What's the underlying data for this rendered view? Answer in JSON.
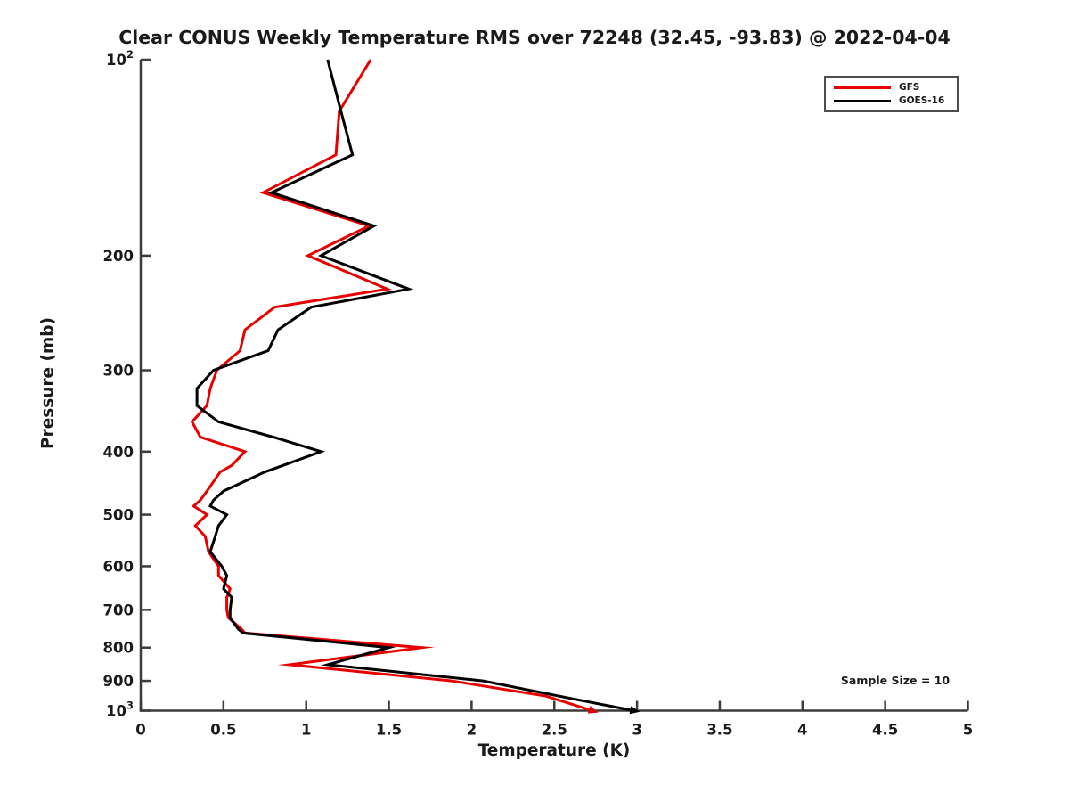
{
  "title": "Clear CONUS Weekly Temperature RMS over 72248 (32.45, -93.83) @ 2022-04-04",
  "legend": {
    "items": [
      {
        "label": "GFS",
        "color": "#e60000"
      },
      {
        "label": "GOES-16",
        "color": "#000000"
      }
    ]
  },
  "annotation": {
    "sample_size_text": "Sample Size = 10"
  },
  "axes": {
    "xlabel": "Temperature (K)",
    "ylabel": "Pressure (mb)",
    "spine_color": "#3c3c3c"
  },
  "chart_data": {
    "type": "line",
    "title": "Clear CONUS Weekly Temperature RMS over 72248 (32.45, -93.83) @ 2022-04-04",
    "xlabel": "Temperature (K)",
    "ylabel": "Pressure (mb)",
    "xlim": [
      0,
      5
    ],
    "ylim": [
      100,
      1000
    ],
    "y_scale": "log10-inverted",
    "grid": false,
    "legend_position": "upper-right",
    "sample_size": 10,
    "x_ticks": [
      {
        "value": 0,
        "label": "0"
      },
      {
        "value": 0.5,
        "label": "0.5"
      },
      {
        "value": 1,
        "label": "1"
      },
      {
        "value": 1.5,
        "label": "1.5"
      },
      {
        "value": 2,
        "label": "2"
      },
      {
        "value": 2.5,
        "label": "2.5"
      },
      {
        "value": 3,
        "label": "3"
      },
      {
        "value": 3.5,
        "label": "3.5"
      },
      {
        "value": 4,
        "label": "4"
      },
      {
        "value": 4.5,
        "label": "4.5"
      },
      {
        "value": 5,
        "label": "5"
      }
    ],
    "y_ticks": [
      {
        "value": 100,
        "label": "10",
        "exponent": "2"
      },
      {
        "value": 200,
        "label": "200"
      },
      {
        "value": 300,
        "label": "300"
      },
      {
        "value": 400,
        "label": "400"
      },
      {
        "value": 500,
        "label": "500"
      },
      {
        "value": 600,
        "label": "600"
      },
      {
        "value": 700,
        "label": "700"
      },
      {
        "value": 800,
        "label": "800"
      },
      {
        "value": 900,
        "label": "900"
      },
      {
        "value": 1000,
        "label": "10",
        "exponent": "3"
      }
    ],
    "pressure_levels": [
      100,
      120,
      140,
      160,
      180,
      200,
      225,
      240,
      260,
      280,
      300,
      320,
      340,
      360,
      380,
      400,
      420,
      430,
      460,
      475,
      485,
      500,
      520,
      540,
      570,
      600,
      620,
      650,
      670,
      700,
      720,
      750,
      760,
      800,
      850,
      900,
      950,
      1000
    ],
    "series": [
      {
        "name": "GFS",
        "color": "#e60000",
        "values": [
          1.39,
          1.2,
          1.18,
          0.74,
          1.38,
          1.01,
          1.49,
          0.81,
          0.63,
          0.6,
          0.46,
          0.42,
          0.4,
          0.31,
          0.36,
          0.63,
          0.55,
          0.48,
          0.4,
          0.36,
          0.32,
          0.4,
          0.33,
          0.39,
          0.41,
          0.47,
          0.47,
          0.54,
          0.52,
          0.52,
          0.53,
          0.61,
          0.63,
          1.7,
          0.9,
          1.88,
          2.45,
          2.73
        ]
      },
      {
        "name": "GOES-16",
        "color": "#000000",
        "values": [
          1.13,
          1.21,
          1.28,
          0.79,
          1.41,
          1.09,
          1.62,
          1.03,
          0.83,
          0.77,
          0.44,
          0.34,
          0.34,
          0.47,
          0.8,
          1.09,
          0.86,
          0.75,
          0.5,
          0.44,
          0.42,
          0.52,
          0.47,
          0.45,
          0.42,
          0.49,
          0.52,
          0.5,
          0.55,
          0.54,
          0.54,
          0.59,
          0.62,
          1.5,
          1.13,
          2.07,
          2.53,
          2.98
        ]
      }
    ]
  }
}
